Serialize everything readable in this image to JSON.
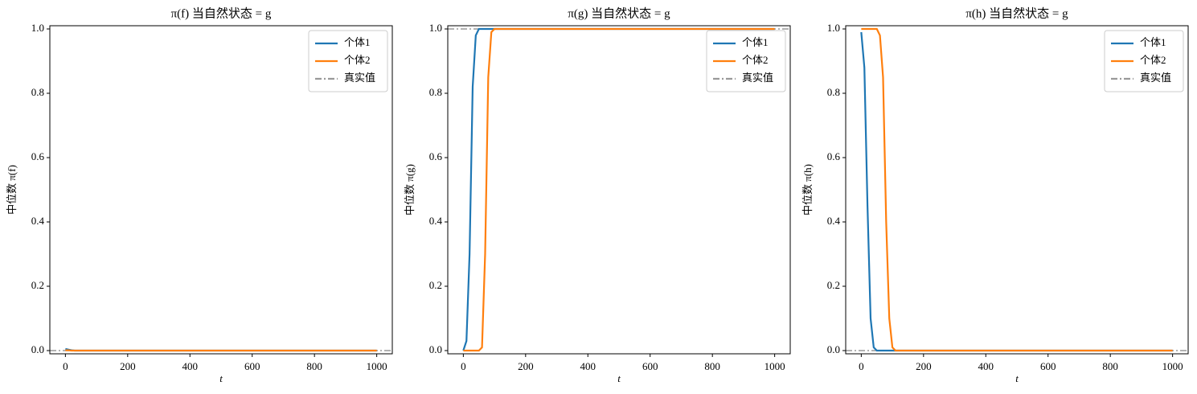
{
  "chart_data": [
    {
      "type": "line",
      "title": "π(f) 当自然状态 = g",
      "xlabel": "t",
      "ylabel": "中位数 π(f)",
      "x": [
        0,
        10,
        20,
        30,
        40,
        50,
        60,
        70,
        80,
        90,
        100,
        110,
        200,
        400,
        600,
        800,
        1000
      ],
      "series": [
        {
          "name": "个体1",
          "color": "#1f77b4",
          "values": [
            0.005,
            0.003,
            0.001,
            0,
            0,
            0,
            0,
            0,
            0,
            0,
            0,
            0,
            0,
            0,
            0,
            0,
            0
          ]
        },
        {
          "name": "个体2",
          "color": "#ff7f0e",
          "values": [
            0.001,
            0.001,
            0,
            0,
            0,
            0,
            0,
            0,
            0,
            0,
            0,
            0,
            0,
            0,
            0,
            0,
            0
          ]
        }
      ],
      "hlines": [
        {
          "name": "真实值",
          "value": 0,
          "color": "#999999",
          "style": "dashdot"
        }
      ],
      "xlim": [
        -50,
        1050
      ],
      "ylim": [
        -0.01,
        1.01
      ],
      "xticks": [
        0,
        200,
        400,
        600,
        800,
        1000
      ],
      "yticks": [
        {
          "value": 0,
          "label": "0.0"
        },
        0.2,
        0.4,
        0.6,
        0.8,
        {
          "value": 1,
          "label": "1.0"
        }
      ],
      "legend": "upper right"
    },
    {
      "type": "line",
      "title": "π(g) 当自然状态 = g",
      "xlabel": "t",
      "ylabel": "中位数 π(g)",
      "x": [
        0,
        10,
        20,
        30,
        40,
        50,
        60,
        70,
        80,
        90,
        100,
        110,
        200,
        400,
        600,
        800,
        1000
      ],
      "series": [
        {
          "name": "个体1",
          "color": "#1f77b4",
          "values": [
            0.0,
            0.03,
            0.3,
            0.82,
            0.98,
            1,
            1,
            1,
            1,
            1,
            1,
            1,
            1,
            1,
            1,
            1,
            1
          ]
        },
        {
          "name": "个体2",
          "color": "#ff7f0e",
          "values": [
            0,
            0,
            0,
            0,
            0,
            0,
            0.01,
            0.3,
            0.85,
            0.99,
            1,
            1,
            1,
            1,
            1,
            1,
            1
          ]
        }
      ],
      "hlines": [
        {
          "name": "真实值",
          "value": 1,
          "color": "#999999",
          "style": "dashdot"
        }
      ],
      "xlim": [
        -50,
        1050
      ],
      "ylim": [
        -0.01,
        1.01
      ],
      "xticks": [
        0,
        200,
        400,
        600,
        800,
        1000
      ],
      "yticks": [
        {
          "value": 0,
          "label": "0.0"
        },
        0.2,
        0.4,
        0.6,
        0.8,
        {
          "value": 1,
          "label": "1.0"
        }
      ],
      "legend": "upper right"
    },
    {
      "type": "line",
      "title": "π(h) 当自然状态 = g",
      "xlabel": "t",
      "ylabel": "中位数 π(h)",
      "x": [
        0,
        10,
        20,
        30,
        40,
        50,
        60,
        70,
        80,
        90,
        100,
        110,
        200,
        400,
        600,
        800,
        1000
      ],
      "series": [
        {
          "name": "个体1",
          "color": "#1f77b4",
          "values": [
            0.99,
            0.88,
            0.45,
            0.1,
            0.01,
            0,
            0,
            0,
            0,
            0,
            0,
            0,
            0,
            0,
            0,
            0,
            0
          ]
        },
        {
          "name": "个体2",
          "color": "#ff7f0e",
          "values": [
            1,
            1,
            1,
            1,
            1,
            1,
            0.98,
            0.85,
            0.4,
            0.1,
            0.01,
            0,
            0,
            0,
            0,
            0,
            0
          ]
        }
      ],
      "hlines": [
        {
          "name": "真实值",
          "value": 0,
          "color": "#999999",
          "style": "dashdot"
        }
      ],
      "xlim": [
        -50,
        1050
      ],
      "ylim": [
        -0.01,
        1.01
      ],
      "xticks": [
        0,
        200,
        400,
        600,
        800,
        1000
      ],
      "yticks": [
        {
          "value": 0,
          "label": "0.0"
        },
        0.2,
        0.4,
        0.6,
        0.8,
        {
          "value": 1,
          "label": "1.0"
        }
      ],
      "legend": "upper right"
    }
  ]
}
